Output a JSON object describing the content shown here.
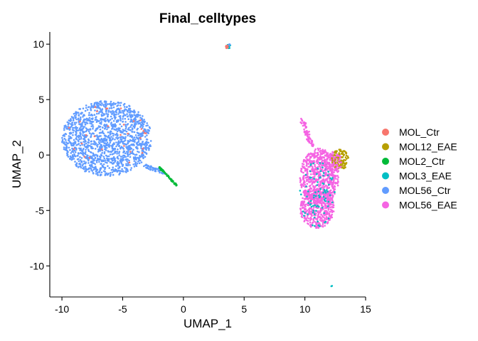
{
  "chart_data": {
    "type": "scatter",
    "title": "Final_celltypes",
    "xlabel": "UMAP_1",
    "ylabel": "UMAP_2",
    "xlim": [
      -11,
      15
    ],
    "ylim": [
      -12.8,
      11.1
    ],
    "xticks": [
      -10,
      -5,
      0,
      5,
      10,
      15
    ],
    "yticks": [
      -10,
      -5,
      0,
      5,
      10
    ],
    "grid": false,
    "legend": "right",
    "series": [
      {
        "name": "MOL_Ctr",
        "color": "#F8766D"
      },
      {
        "name": "MOL12_EAE",
        "color": "#B79F00"
      },
      {
        "name": "MOL2_Ctr",
        "color": "#00BA38"
      },
      {
        "name": "MOL3_EAE",
        "color": "#00BFC4"
      },
      {
        "name": "MOL56_Ctr",
        "color": "#619CFF"
      },
      {
        "name": "MOL56_EAE",
        "color": "#F564E3"
      }
    ],
    "clusters": [
      {
        "series": "MOL56_Ctr",
        "shape": "blob",
        "cx": -6.3,
        "cy": 1.5,
        "rx": 3.7,
        "ry": 3.4,
        "n": 1500
      },
      {
        "series": "MOL_Ctr",
        "shape": "blob",
        "cx": -6.3,
        "cy": 1.5,
        "rx": 3.4,
        "ry": 3.1,
        "n": 30
      },
      {
        "series": "MOL56_Ctr",
        "shape": "line",
        "x0": -3.2,
        "y0": -1.0,
        "x1": -1.4,
        "y1": -1.6,
        "width": 0.35,
        "n": 50
      },
      {
        "series": "MOL2_Ctr",
        "shape": "line",
        "x0": -2.0,
        "y0": -1.1,
        "x1": -0.5,
        "y1": -2.8,
        "width": 0.12,
        "n": 70
      },
      {
        "series": "MOL56_EAE",
        "shape": "line",
        "x0": 9.7,
        "y0": 3.3,
        "x1": 10.6,
        "y1": 0.8,
        "width": 0.35,
        "n": 70
      },
      {
        "series": "MOL56_EAE",
        "shape": "blob",
        "cx": 11.2,
        "cy": -2.0,
        "rx": 1.6,
        "ry": 2.6,
        "n": 700
      },
      {
        "series": "MOL56_EAE",
        "shape": "blob",
        "cx": 11.0,
        "cy": -4.8,
        "rx": 1.4,
        "ry": 1.8,
        "n": 450
      },
      {
        "series": "MOL3_EAE",
        "shape": "blob",
        "cx": 11.0,
        "cy": -3.5,
        "rx": 1.5,
        "ry": 3.0,
        "n": 90
      },
      {
        "series": "MOL12_EAE",
        "shape": "blob",
        "cx": 12.9,
        "cy": -0.4,
        "rx": 0.7,
        "ry": 0.9,
        "n": 120
      },
      {
        "series": "MOL56_EAE",
        "shape": "blob",
        "cx": 12.3,
        "cy": -0.6,
        "rx": 0.8,
        "ry": 0.9,
        "n": 70
      },
      {
        "series": "MOL3_EAE",
        "shape": "blob",
        "cx": 3.7,
        "cy": 9.8,
        "rx": 0.18,
        "ry": 0.22,
        "n": 14
      },
      {
        "series": "MOL_Ctr",
        "shape": "blob",
        "cx": 3.6,
        "cy": 9.75,
        "rx": 0.12,
        "ry": 0.15,
        "n": 8
      },
      {
        "series": "MOL56_Ctr",
        "shape": "blob",
        "cx": 3.8,
        "cy": 9.9,
        "rx": 0.1,
        "ry": 0.12,
        "n": 4
      },
      {
        "series": "MOL3_EAE",
        "shape": "blob",
        "cx": 12.2,
        "cy": -11.8,
        "rx": 0.05,
        "ry": 0.05,
        "n": 2
      }
    ]
  }
}
